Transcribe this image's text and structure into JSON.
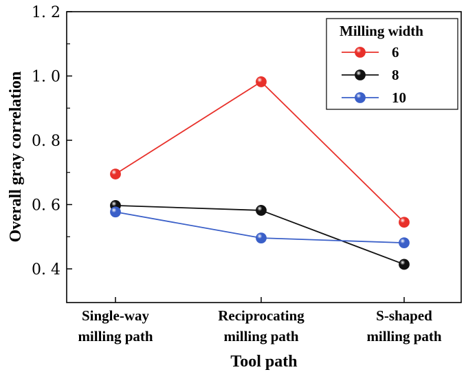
{
  "chart_data": {
    "type": "line",
    "title": "",
    "xlabel": "Tool path",
    "ylabel": "Overall gray correlation",
    "categories": [
      [
        "Single-way",
        "milling path"
      ],
      [
        "Reciprocating",
        "milling path"
      ],
      [
        "S-shaped",
        "milling path"
      ]
    ],
    "ylim": [
      0.35,
      1.2
    ],
    "yticks": [
      0.4,
      0.6,
      0.8,
      1.0,
      1.2
    ],
    "ytick_labels": [
      "0. 4",
      "0. 6",
      "0. 8",
      "1. 0",
      "1. 2"
    ],
    "grid": false,
    "legend": {
      "title": "Milling width",
      "position": "top-right"
    },
    "series": [
      {
        "name": "6",
        "color": "#e8302a",
        "values": [
          0.695,
          0.982,
          0.545
        ]
      },
      {
        "name": "8",
        "color": "#111111",
        "values": [
          0.597,
          0.582,
          0.414
        ]
      },
      {
        "name": "10",
        "color": "#3a5fc8",
        "values": [
          0.577,
          0.496,
          0.481
        ]
      }
    ]
  }
}
